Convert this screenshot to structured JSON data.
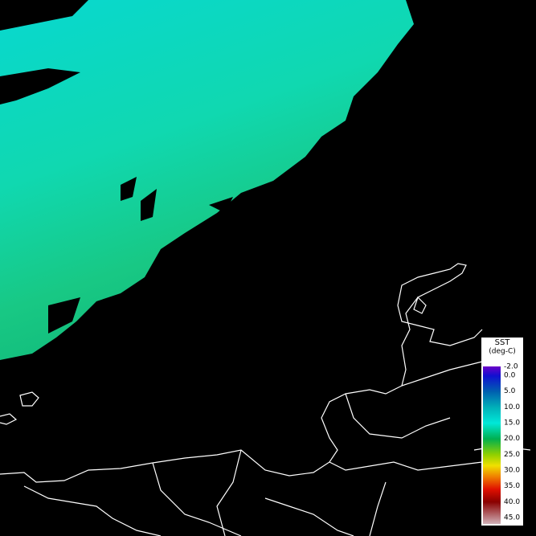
{
  "legend": {
    "title": "SST",
    "unit": "(deg-C)",
    "labels": [
      "-2.0",
      "0.0",
      "5.0",
      "10.0",
      "15.0",
      "20.0",
      "25.0",
      "30.0",
      "35.0",
      "40.0",
      "45.0"
    ]
  }
}
